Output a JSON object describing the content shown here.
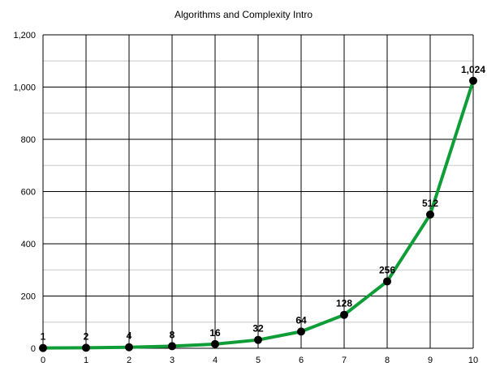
{
  "chart_data": {
    "type": "line",
    "title": "Algorithms and Complexity Intro",
    "xlabel": "",
    "ylabel": "",
    "x": [
      0,
      1,
      2,
      3,
      4,
      5,
      6,
      7,
      8,
      9,
      10
    ],
    "xlim": [
      0,
      10
    ],
    "ylim": [
      0,
      1200
    ],
    "x_ticks": [
      "0",
      "1",
      "2",
      "3",
      "4",
      "5",
      "6",
      "7",
      "8",
      "9",
      "10"
    ],
    "y_ticks": [
      "0",
      "200",
      "400",
      "600",
      "800",
      "1,000",
      "1,200"
    ],
    "y_tick_values": [
      0,
      200,
      400,
      600,
      800,
      1000,
      1200
    ],
    "grid": true,
    "legend": "none",
    "series": [
      {
        "values": [
          1,
          2,
          4,
          8,
          16,
          32,
          64,
          128,
          256,
          512,
          1024
        ],
        "data_labels": [
          "1",
          "2",
          "4",
          "8",
          "16",
          "32",
          "64",
          "128",
          "256",
          "512",
          "1,024"
        ],
        "color": "#0f9d38",
        "marker_color": "#000000"
      }
    ]
  }
}
